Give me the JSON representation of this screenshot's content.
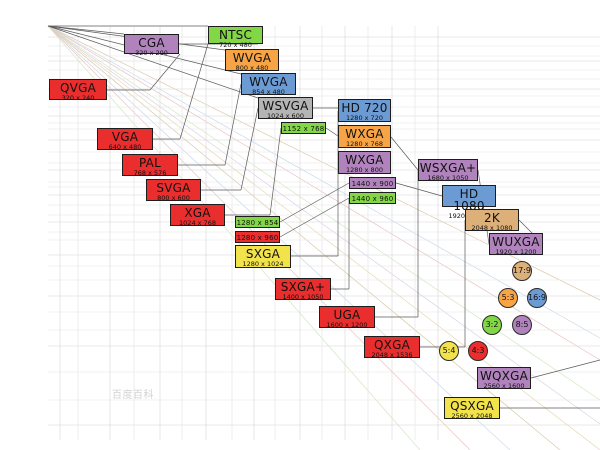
{
  "diagram": {
    "resolutions": [
      {
        "id": "cga",
        "name": "CGA",
        "dims": "320 x 200",
        "color": "#b083bc"
      },
      {
        "id": "ntsc",
        "name": "NTSC",
        "dims": "720 x 480",
        "color": "#83d646"
      },
      {
        "id": "qvga",
        "name": "QVGA",
        "dims": "320 x 240",
        "color": "#ea2e2e"
      },
      {
        "id": "wvga1",
        "name": "WVGA",
        "dims": "800 x 480",
        "color": "#f6a446"
      },
      {
        "id": "wvga2",
        "name": "WVGA",
        "dims": "854 x 480",
        "color": "#6c9bd3"
      },
      {
        "id": "wsvga",
        "name": "WSVGA",
        "dims": "1024 x 600",
        "color": "#b4b4b4"
      },
      {
        "id": "hd720",
        "name": "HD 720",
        "dims": "1280 x 720",
        "color": "#6c9bd3"
      },
      {
        "id": "r1152",
        "name": "1152 x 768",
        "dims": "",
        "color": "#83d646"
      },
      {
        "id": "wxga1",
        "name": "WXGA",
        "dims": "1280 x 768",
        "color": "#f6a446"
      },
      {
        "id": "vga",
        "name": "VGA",
        "dims": "640 x 480",
        "color": "#ea2e2e"
      },
      {
        "id": "wxga2",
        "name": "WXGA",
        "dims": "1280 x 800",
        "color": "#b083bc"
      },
      {
        "id": "pal",
        "name": "PAL",
        "dims": "768 x 576",
        "color": "#ea2e2e"
      },
      {
        "id": "wsxgap",
        "name": "WSXGA+",
        "dims": "1680 x 1050",
        "color": "#b083bc"
      },
      {
        "id": "r1440a",
        "name": "1440 x 900",
        "dims": "",
        "color": "#b083bc"
      },
      {
        "id": "svga",
        "name": "SVGA",
        "dims": "800 x 600",
        "color": "#ea2e2e"
      },
      {
        "id": "hd1080",
        "name": "HD 1080",
        "dims": "1920 x 1080",
        "color": "#6c9bd3"
      },
      {
        "id": "r1440b",
        "name": "1440 x 960",
        "dims": "",
        "color": "#83d646"
      },
      {
        "id": "xga",
        "name": "XGA",
        "dims": "1024 x 768",
        "color": "#ea2e2e"
      },
      {
        "id": "twok",
        "name": "2K",
        "dims": "2048 x 1080",
        "color": "#ddb07a"
      },
      {
        "id": "r1280a",
        "name": "1280 x 854",
        "dims": "",
        "color": "#83d646"
      },
      {
        "id": "wuxga",
        "name": "WUXGA",
        "dims": "1920 x 1200",
        "color": "#b083bc"
      },
      {
        "id": "r1280b",
        "name": "1280 x 960",
        "dims": "",
        "color": "#ea2e2e"
      },
      {
        "id": "sxga",
        "name": "SXGA",
        "dims": "1280 x 1024",
        "color": "#f2e34c"
      },
      {
        "id": "sxgap",
        "name": "SXGA+",
        "dims": "1400 x 1050",
        "color": "#ea2e2e"
      },
      {
        "id": "uga",
        "name": "UGA",
        "dims": "1600 x 1200",
        "color": "#ea2e2e"
      },
      {
        "id": "qxga",
        "name": "QXGA",
        "dims": "2048 x 1536",
        "color": "#ea2e2e"
      },
      {
        "id": "wqxga",
        "name": "WQXGA",
        "dims": "2560 x 1600",
        "color": "#b083bc"
      },
      {
        "id": "qsxga",
        "name": "QSXGA",
        "dims": "2560 x 2048",
        "color": "#f2e34c"
      }
    ],
    "aspect_ratios": [
      {
        "id": "r17_9",
        "label": "17:9",
        "color": "#ddb07a"
      },
      {
        "id": "r5_3",
        "label": "5:3",
        "color": "#f6a446"
      },
      {
        "id": "r16_9",
        "label": "16:9",
        "color": "#6c9bd3"
      },
      {
        "id": "r3_2",
        "label": "3:2",
        "color": "#83d646"
      },
      {
        "id": "r8_5",
        "label": "8:5",
        "color": "#b083bc"
      },
      {
        "id": "r5_4",
        "label": "5:4",
        "color": "#f2e34c"
      },
      {
        "id": "r4_3",
        "label": "4:3",
        "color": "#ea2e2e"
      }
    ],
    "watermark": "百度百科"
  }
}
